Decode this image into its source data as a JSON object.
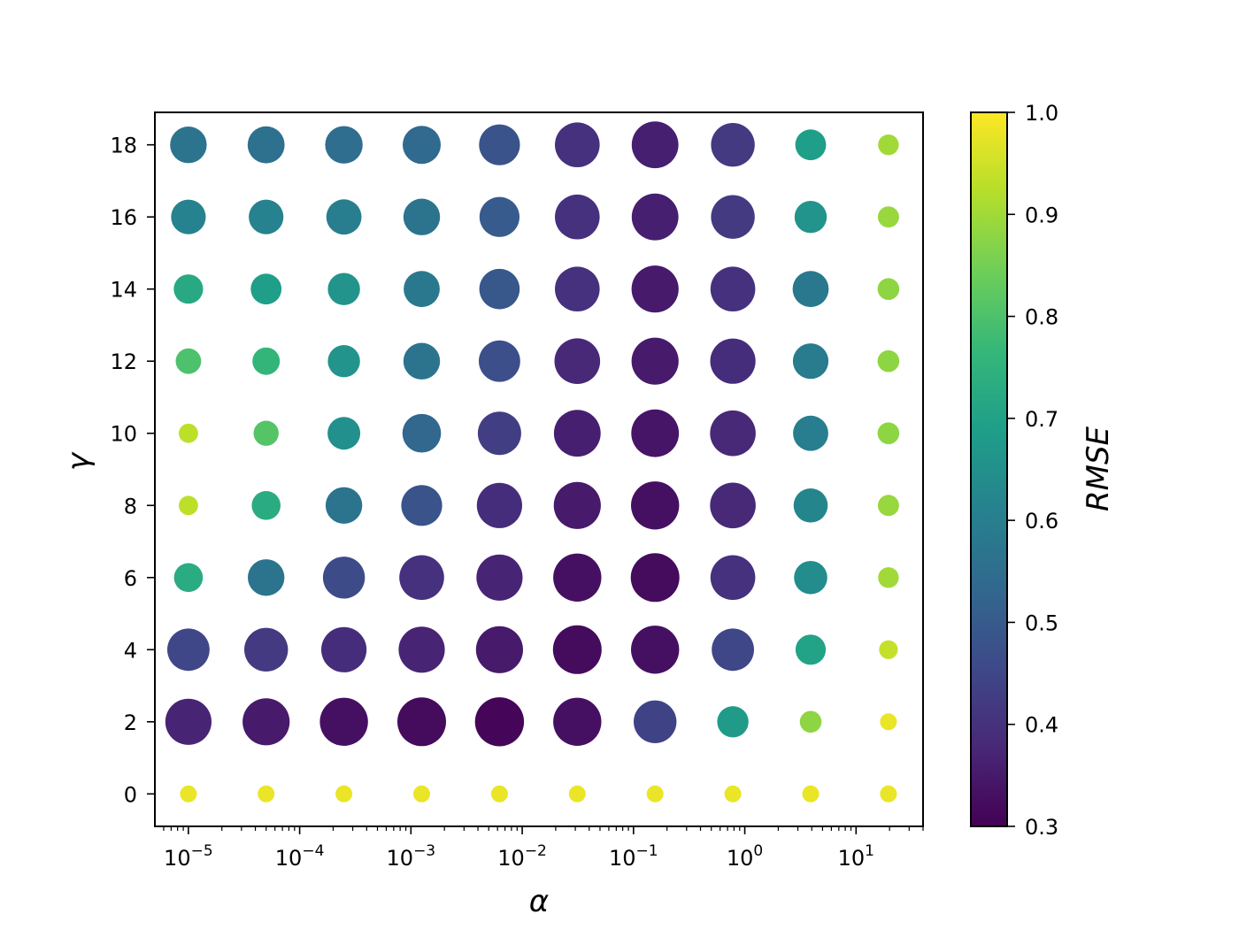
{
  "chart_data": {
    "type": "scatter",
    "title": "",
    "xlabel": "α",
    "ylabel": "γ",
    "xscale": "log",
    "xlim": [
      5e-06,
      40
    ],
    "ylim": [
      -0.9,
      18.9
    ],
    "grid": false,
    "legend": "none",
    "x_ticks": [
      {
        "base": "10",
        "exp": "−5",
        "value": 1e-05
      },
      {
        "base": "10",
        "exp": "−4",
        "value": 0.0001
      },
      {
        "base": "10",
        "exp": "−3",
        "value": 0.001
      },
      {
        "base": "10",
        "exp": "−2",
        "value": 0.01
      },
      {
        "base": "10",
        "exp": "−1",
        "value": 0.1
      },
      {
        "base": "10",
        "exp": "0",
        "value": 1
      },
      {
        "base": "10",
        "exp": "1",
        "value": 10
      }
    ],
    "y_ticks": [
      "0",
      "2",
      "4",
      "6",
      "8",
      "10",
      "12",
      "14",
      "16",
      "18"
    ],
    "alpha_values": [
      1e-05,
      5e-05,
      0.00025,
      0.00125,
      0.00625,
      0.03125,
      0.15625,
      0.78125,
      3.90625,
      19.53125
    ],
    "gamma_values": [
      0,
      2,
      4,
      6,
      8,
      10,
      12,
      14,
      16,
      18
    ],
    "rmse": [
      [
        0.98,
        0.98,
        0.98,
        0.98,
        0.98,
        0.98,
        0.98,
        0.98,
        0.98,
        0.98
      ],
      [
        0.37,
        0.35,
        0.33,
        0.32,
        0.31,
        0.33,
        0.44,
        0.68,
        0.88,
        0.98
      ],
      [
        0.45,
        0.42,
        0.39,
        0.37,
        0.35,
        0.32,
        0.33,
        0.45,
        0.7,
        0.94
      ],
      [
        0.73,
        0.57,
        0.46,
        0.4,
        0.37,
        0.33,
        0.32,
        0.4,
        0.64,
        0.9
      ],
      [
        0.93,
        0.73,
        0.57,
        0.48,
        0.39,
        0.35,
        0.33,
        0.38,
        0.62,
        0.89
      ],
      [
        0.93,
        0.81,
        0.65,
        0.53,
        0.43,
        0.36,
        0.34,
        0.38,
        0.6,
        0.88
      ],
      [
        0.8,
        0.76,
        0.66,
        0.57,
        0.47,
        0.38,
        0.35,
        0.39,
        0.59,
        0.88
      ],
      [
        0.72,
        0.69,
        0.66,
        0.58,
        0.49,
        0.4,
        0.35,
        0.4,
        0.58,
        0.88
      ],
      [
        0.61,
        0.61,
        0.6,
        0.57,
        0.5,
        0.4,
        0.36,
        0.42,
        0.66,
        0.89
      ],
      [
        0.57,
        0.56,
        0.55,
        0.54,
        0.48,
        0.4,
        0.36,
        0.42,
        0.69,
        0.9
      ]
    ],
    "colorbar": {
      "label": "RMSE",
      "min": 0.3,
      "max": 1.0,
      "colormap": "viridis",
      "ticks": [
        "0.3",
        "0.4",
        "0.5",
        "0.6",
        "0.7",
        "0.8",
        "0.9",
        "1.0"
      ]
    },
    "colors": {
      "viridis": [
        "#440154",
        "#482878",
        "#3e4989",
        "#31688e",
        "#26828e",
        "#1f9e89",
        "#35b779",
        "#6ece58",
        "#b5de2b",
        "#fde725"
      ]
    }
  }
}
